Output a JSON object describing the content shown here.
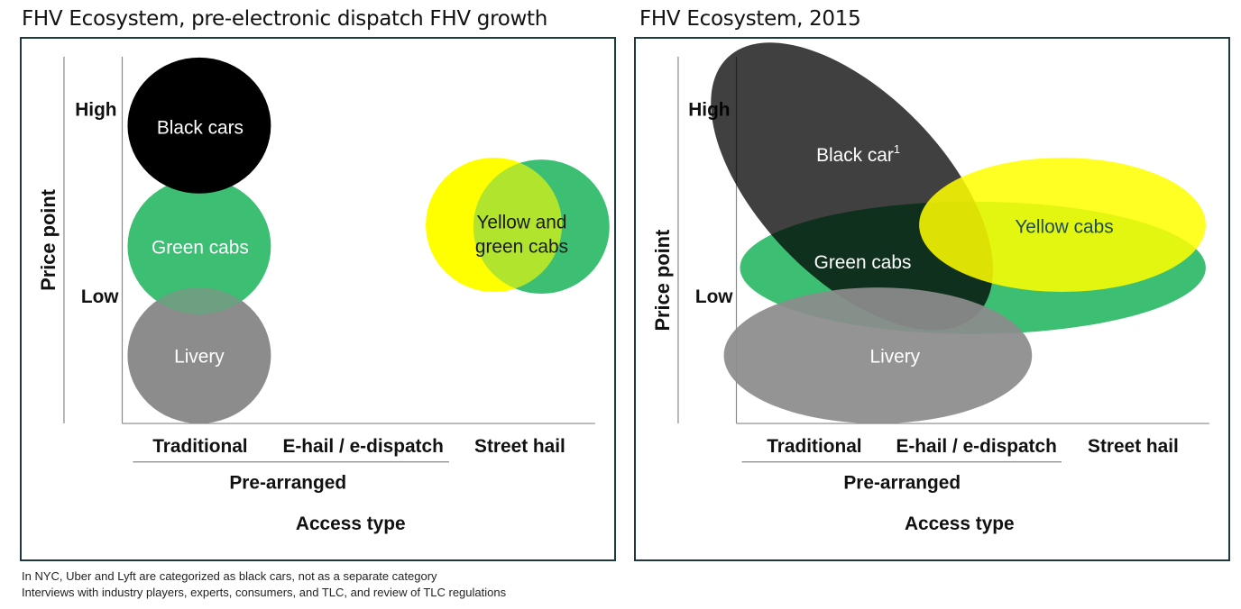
{
  "left_panel": {
    "title": "FHV Ecosystem, pre-electronic dispatch FHV growth",
    "y_axis_label": "Price point",
    "y_high": "High",
    "y_low": "Low",
    "x_categories": [
      "Traditional",
      "E-hail / e-dispatch",
      "Street hail"
    ],
    "x_group_label": "Pre-arranged",
    "x_axis_label": "Access type",
    "bubbles": {
      "black": "Black cars",
      "green": "Green cabs",
      "livery": "Livery",
      "yellow_green_line1": "Yellow and",
      "yellow_green_line2": "green cabs"
    }
  },
  "right_panel": {
    "title": "FHV Ecosystem, 2015",
    "y_axis_label": "Price point",
    "y_high": "High",
    "y_low": "Low",
    "x_categories": [
      "Traditional",
      "E-hail / e-dispatch",
      "Street hail"
    ],
    "x_group_label": "Pre-arranged",
    "x_axis_label": "Access type",
    "bubbles": {
      "black": "Black car",
      "black_sup": "1",
      "green": "Green cabs",
      "yellow": "Yellow cabs",
      "livery": "Livery"
    }
  },
  "colors": {
    "black": "#000000",
    "green": "#3cbf72",
    "yellow": "#ffff00",
    "livery": "#8c8c8c",
    "frame": "#1e3a40"
  },
  "footnotes": [
    "In NYC, Uber and Lyft are categorized as black cars, not as a separate category",
    "Interviews with industry players, experts, consumers, and TLC, and review of TLC regulations"
  ]
}
